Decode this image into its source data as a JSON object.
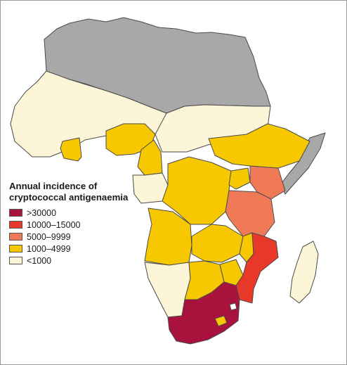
{
  "legend": {
    "title_line1": "Annual incidence of",
    "title_line2": "cryptococcal antigenaemia",
    "items": [
      {
        "label": ">30000",
        "color": "#a8123c"
      },
      {
        "label": "10000–15000",
        "color": "#e8382a"
      },
      {
        "label": "5000–9999",
        "color": "#f07a58"
      },
      {
        "label": "1000–4999",
        "color": "#f7c800"
      },
      {
        "label": "<1000",
        "color": "#fdf5d8"
      }
    ]
  },
  "colors": {
    "no_data": "#a8a8a8",
    "border": "#4a4a4a",
    "water": "#ffffff"
  }
}
